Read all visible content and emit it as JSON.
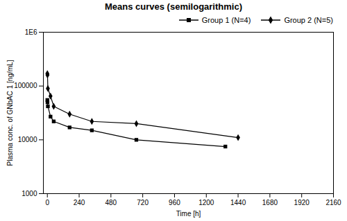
{
  "chart_data": {
    "type": "line",
    "title": "Means curves (semilogarithmic)",
    "xlabel": "Time [h]",
    "ylabel": "Plasma conc. of GNbAC 1 [ng/mL]",
    "series": [
      {
        "name": "Group 1 (N=4)",
        "color": "black",
        "marker": "square",
        "line_style": "solid",
        "x": [
          0,
          1,
          4,
          24,
          48,
          168,
          336,
          672,
          1344
        ],
        "values": [
          55000,
          50000,
          42000,
          27000,
          22000,
          17000,
          15000,
          10000,
          7500
        ]
      },
      {
        "name": "Group 2 (N=5)",
        "color": "black",
        "marker": "diamond",
        "line_style": "solid",
        "x": [
          0,
          1,
          4,
          24,
          48,
          168,
          336,
          672,
          1440
        ],
        "values": [
          170000,
          160000,
          90000,
          65000,
          42000,
          30000,
          22000,
          20000,
          11000
        ]
      }
    ],
    "xlim": [
      -30,
      2160
    ],
    "xticks": [
      0,
      240,
      480,
      720,
      960,
      1200,
      1440,
      1680,
      1920,
      2160
    ],
    "ylim": [
      1000,
      1000000
    ],
    "yticks": [
      1000,
      10000,
      100000,
      {
        "value": 1000000,
        "label": "1E6"
      }
    ],
    "log": "y",
    "grid": false,
    "legend": "upper right"
  }
}
